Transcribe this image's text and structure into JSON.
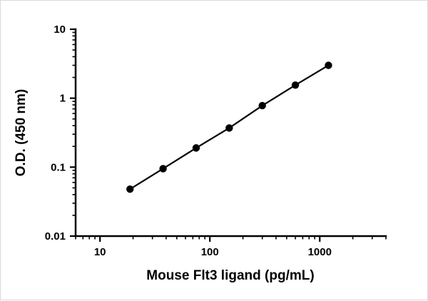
{
  "chart_data": {
    "type": "scatter",
    "title": "",
    "xlabel": "Mouse Flt3 ligand (pg/mL)",
    "ylabel": "O.D. (450 nm)",
    "xscale": "log",
    "yscale": "log",
    "xlim": [
      6,
      4000
    ],
    "ylim": [
      0.01,
      10
    ],
    "x": [
      18.75,
      37.5,
      75,
      150,
      300,
      600,
      1200
    ],
    "y": [
      0.048,
      0.095,
      0.19,
      0.37,
      0.78,
      1.55,
      3.0
    ],
    "x_major_ticks": [
      10,
      100,
      1000
    ],
    "x_major_tick_labels": [
      "10",
      "100",
      "1000"
    ],
    "y_major_ticks": [
      0.01,
      0.1,
      1,
      10
    ],
    "y_major_tick_labels": [
      "0.01",
      "0.1",
      "1",
      "10"
    ],
    "grid": false,
    "legend": false,
    "line_color": "#000000",
    "marker_color": "#000000",
    "marker": "circle"
  }
}
